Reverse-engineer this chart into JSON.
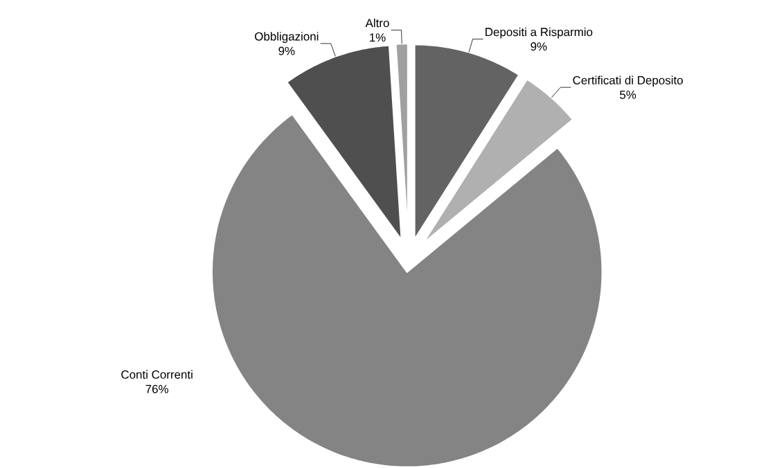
{
  "chart_data": {
    "type": "pie",
    "categories": [
      "Depositi a Risparmio",
      "Certificati di Deposito",
      "Conti Correnti",
      "Obbligazioni",
      "Altro"
    ],
    "values": [
      9,
      5,
      76,
      9,
      1
    ],
    "value_labels": [
      "9%",
      "5%",
      "76%",
      "9%",
      "1%"
    ],
    "colors": [
      "#636363",
      "#b0b0b0",
      "#848484",
      "#4f4f4f",
      "#a0a0a0"
    ]
  }
}
